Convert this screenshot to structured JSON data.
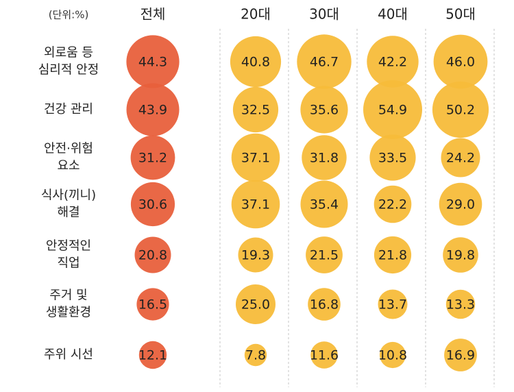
{
  "chart_data": {
    "type": "bubble-matrix",
    "unit_label": "(단위:%)",
    "columns": [
      "전체",
      "20대",
      "30대",
      "40대",
      "50대"
    ],
    "rows": [
      [
        "외로움 등",
        "심리적 안정"
      ],
      [
        "건강 관리"
      ],
      [
        "안전·위험",
        "요소"
      ],
      [
        "식사(끼니)",
        "해결"
      ],
      [
        "안정적인",
        "직업"
      ],
      [
        "주거 및",
        "생활환경"
      ],
      [
        "주위 시선"
      ]
    ],
    "values": [
      [
        44.3,
        40.8,
        46.7,
        42.2,
        46.0
      ],
      [
        43.9,
        32.5,
        35.6,
        54.9,
        50.2
      ],
      [
        31.2,
        37.1,
        31.8,
        33.5,
        24.2
      ],
      [
        30.6,
        37.1,
        35.4,
        22.2,
        29.0
      ],
      [
        20.8,
        19.3,
        21.5,
        21.8,
        19.8
      ],
      [
        16.5,
        25.0,
        16.8,
        13.7,
        13.3
      ],
      [
        12.1,
        7.8,
        11.6,
        10.8,
        16.9
      ]
    ],
    "value_labels": [
      [
        "44.3",
        "40.8",
        "46.7",
        "42.2",
        "46.0"
      ],
      [
        "43.9",
        "32.5",
        "35.6",
        "54.9",
        "50.2"
      ],
      [
        "31.2",
        "37.1",
        "31.8",
        "33.5",
        "24.2"
      ],
      [
        "30.6",
        "37.1",
        "35.4",
        "22.2",
        "29.0"
      ],
      [
        "20.8",
        "19.3",
        "21.5",
        "21.8",
        "19.8"
      ],
      [
        "16.5",
        "25.0",
        "16.8",
        "13.7",
        "13.3"
      ],
      [
        "12.1",
        "7.8",
        "11.6",
        "10.8",
        "16.9"
      ]
    ],
    "colors": {
      "total": "#e8603c",
      "age": "#f7bc3a",
      "text": "#222222",
      "grid": "#d9d9d9"
    }
  }
}
